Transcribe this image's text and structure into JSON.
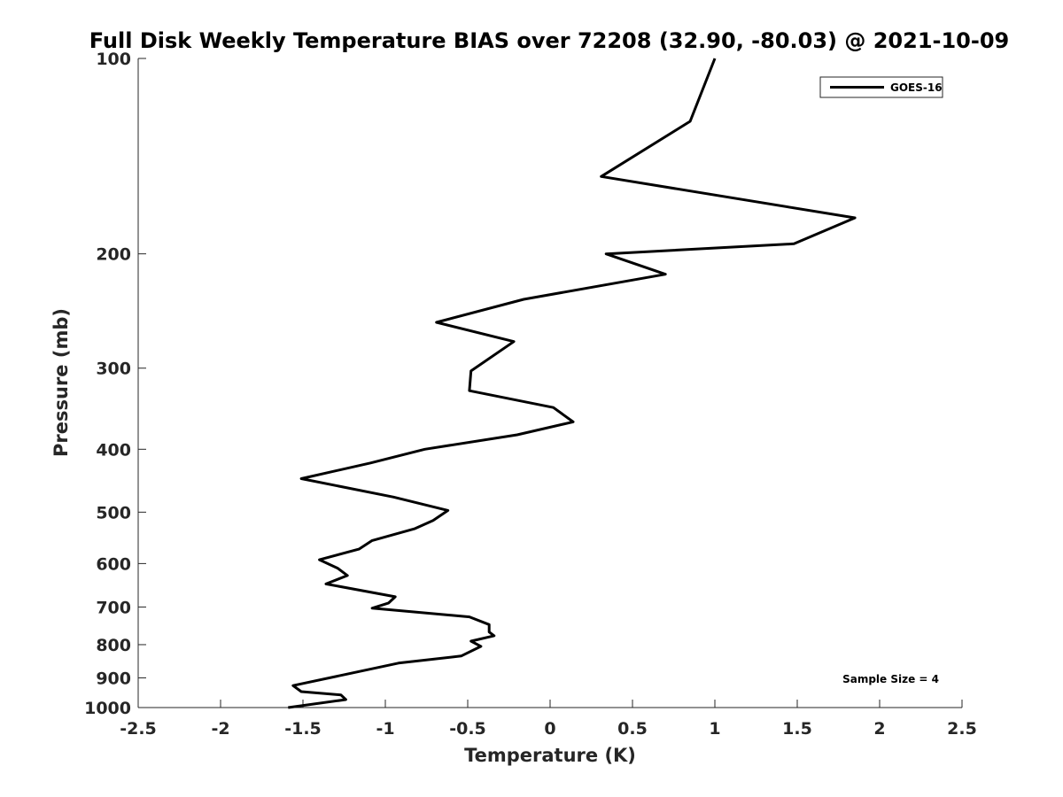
{
  "chart_data": {
    "type": "line",
    "title": "Full Disk Weekly Temperature BIAS over 72208 (32.90, -80.03) @ 2021-10-09",
    "xlabel": "Temperature (K)",
    "ylabel": "Pressure (mb)",
    "xlim": [
      -2.5,
      2.5
    ],
    "ylim": [
      100,
      1000
    ],
    "y_scale": "log",
    "y_reversed": true,
    "x_ticks": [
      "-2.5",
      "-2",
      "-1.5",
      "-1",
      "-0.5",
      "0",
      "0.5",
      "1",
      "1.5",
      "2",
      "2.5"
    ],
    "x_tick_values": [
      -2.5,
      -2,
      -1.5,
      -1,
      -0.5,
      0,
      0.5,
      1,
      1.5,
      2,
      2.5
    ],
    "y_ticks": [
      "100",
      "200",
      "300",
      "400",
      "500",
      "600",
      "700",
      "800",
      "900",
      "1000"
    ],
    "y_tick_values": [
      100,
      200,
      300,
      400,
      500,
      600,
      700,
      800,
      900,
      1000
    ],
    "grid": false,
    "legend": {
      "position": "top-right",
      "entries": [
        "GOES-16"
      ]
    },
    "annotation": "Sample Size = 4",
    "series": [
      {
        "name": "GOES-16",
        "color": "#000000",
        "points": [
          [
            1.0,
            100
          ],
          [
            0.85,
            125
          ],
          [
            0.31,
            152
          ],
          [
            1.85,
            176
          ],
          [
            1.48,
            193
          ],
          [
            0.34,
            200
          ],
          [
            0.7,
            215
          ],
          [
            -0.16,
            235
          ],
          [
            -0.69,
            255
          ],
          [
            -0.22,
            273
          ],
          [
            -0.48,
            303
          ],
          [
            -0.49,
            325
          ],
          [
            0.02,
            345
          ],
          [
            0.14,
            363
          ],
          [
            -0.2,
            380
          ],
          [
            -0.76,
            400
          ],
          [
            -1.09,
            420
          ],
          [
            -1.51,
            444
          ],
          [
            -0.95,
            474
          ],
          [
            -0.62,
            497
          ],
          [
            -0.71,
            515
          ],
          [
            -0.82,
            530
          ],
          [
            -1.08,
            553
          ],
          [
            -1.16,
            570
          ],
          [
            -1.4,
            592
          ],
          [
            -1.29,
            610
          ],
          [
            -1.23,
            626
          ],
          [
            -1.36,
            645
          ],
          [
            -0.94,
            675
          ],
          [
            -0.98,
            690
          ],
          [
            -1.08,
            703
          ],
          [
            -0.49,
            725
          ],
          [
            -0.37,
            745
          ],
          [
            -0.37,
            765
          ],
          [
            -0.34,
            775
          ],
          [
            -0.48,
            790
          ],
          [
            -0.42,
            805
          ],
          [
            -0.54,
            833
          ],
          [
            -0.92,
            854
          ],
          [
            -1.56,
            925
          ],
          [
            -1.51,
            945
          ],
          [
            -1.27,
            956
          ],
          [
            -1.24,
            972
          ],
          [
            -1.59,
            1000
          ]
        ]
      }
    ]
  }
}
